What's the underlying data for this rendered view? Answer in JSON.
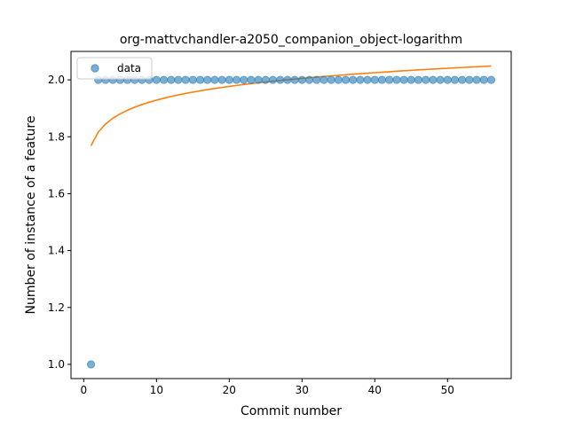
{
  "chart_data": {
    "type": "scatter",
    "title": "org-mattvchandler-a2050_companion_object-logarithm",
    "xlabel": "Commit number",
    "ylabel": "Number of instance of a feature",
    "xlim": [
      -1.75,
      58.75
    ],
    "ylim": [
      0.95,
      2.1
    ],
    "xticks": [
      0,
      10,
      20,
      30,
      40,
      50
    ],
    "yticks": [
      1.0,
      1.2,
      1.4,
      1.6,
      1.8,
      2.0
    ],
    "xtick_labels": [
      "0",
      "10",
      "20",
      "30",
      "40",
      "50"
    ],
    "ytick_labels": [
      "1.0",
      "1.2",
      "1.4",
      "1.6",
      "1.8",
      "2.0"
    ],
    "grid": false,
    "legend_position": "upper-left",
    "series": [
      {
        "name": "data",
        "kind": "scatter",
        "color": "#1f77b4",
        "x": [
          1,
          2,
          3,
          4,
          5,
          6,
          7,
          8,
          9,
          10,
          11,
          12,
          13,
          14,
          15,
          16,
          17,
          18,
          19,
          20,
          21,
          22,
          23,
          24,
          25,
          26,
          27,
          28,
          29,
          30,
          31,
          32,
          33,
          34,
          35,
          36,
          37,
          38,
          39,
          40,
          41,
          42,
          43,
          44,
          45,
          46,
          47,
          48,
          49,
          50,
          51,
          52,
          53,
          54,
          55,
          56
        ],
        "y": [
          1,
          2,
          2,
          2,
          2,
          2,
          2,
          2,
          2,
          2,
          2,
          2,
          2,
          2,
          2,
          2,
          2,
          2,
          2,
          2,
          2,
          2,
          2,
          2,
          2,
          2,
          2,
          2,
          2,
          2,
          2,
          2,
          2,
          2,
          2,
          2,
          2,
          2,
          2,
          2,
          2,
          2,
          2,
          2,
          2,
          2,
          2,
          2,
          2,
          2,
          2,
          2,
          2,
          2,
          2,
          2
        ]
      },
      {
        "kind": "line",
        "color": "#ff7f0e",
        "fit": {
          "model": "a + b*ln(x)",
          "a": 1.7685,
          "b": 0.0696
        },
        "x": [
          1,
          2,
          3,
          4,
          5,
          6,
          7,
          8,
          9,
          10,
          11,
          12,
          13,
          14,
          15,
          16,
          17,
          18,
          19,
          20,
          21,
          22,
          23,
          24,
          25,
          26,
          27,
          28,
          29,
          30,
          31,
          32,
          33,
          34,
          35,
          36,
          37,
          38,
          39,
          40,
          41,
          42,
          43,
          44,
          45,
          46,
          47,
          48,
          49,
          50,
          51,
          52,
          53,
          54,
          55,
          56
        ],
        "y": [
          1.7685,
          1.8167,
          1.845,
          1.865,
          1.8805,
          1.8932,
          1.9039,
          1.9132,
          1.9214,
          1.9288,
          1.9354,
          1.9414,
          1.947,
          1.9522,
          1.957,
          1.9615,
          1.9657,
          1.9697,
          1.9734,
          1.977,
          1.9804,
          1.9836,
          1.9867,
          1.9897,
          1.9925,
          1.9953,
          1.9979,
          2.0004,
          2.0029,
          2.0052,
          2.0075,
          2.0097,
          2.0119,
          2.0139,
          2.0159,
          2.0179,
          2.0198,
          2.0216,
          2.0235,
          2.0252,
          2.0269,
          2.0286,
          2.0303,
          2.0319,
          2.0334,
          2.035,
          2.0365,
          2.0379,
          2.0394,
          2.0408,
          2.0421,
          2.0435,
          2.0448,
          2.0461,
          2.0474,
          2.0487
        ]
      }
    ]
  }
}
